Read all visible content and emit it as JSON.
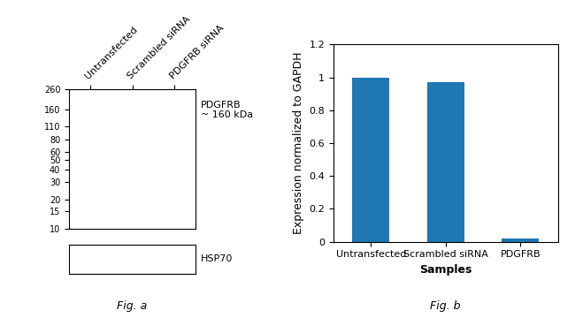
{
  "chart_data": [
    {
      "type": "blot",
      "categories": [
        "Untransfected",
        "Scrambled siRNA",
        "PDGFRB siRNA"
      ],
      "log": "y",
      "ylim": [
        10,
        260
      ],
      "yticks": [
        260,
        160,
        110,
        80,
        60,
        50,
        40,
        30,
        20,
        15,
        10
      ],
      "band_labels": [
        "PDGFRB\n~ 160 kDa",
        "HSP70"
      ],
      "annotations": [
        "Fig. a"
      ]
    },
    {
      "type": "bar",
      "categories": [
        "Untransfected",
        "Scrambled siRNA",
        "PDGFRB"
      ],
      "values": [
        1.0,
        0.97,
        0.02
      ],
      "ylim": [
        0,
        1.2
      ],
      "yticks": [
        0,
        0.2,
        0.4,
        0.6,
        0.8,
        {
          "value": 1.0,
          "label": "1"
        },
        1.2
      ],
      "xlabel": "Samples",
      "ylabel": "Expression normalized to GAPDH",
      "annotations": [
        "Fig. b"
      ]
    }
  ]
}
